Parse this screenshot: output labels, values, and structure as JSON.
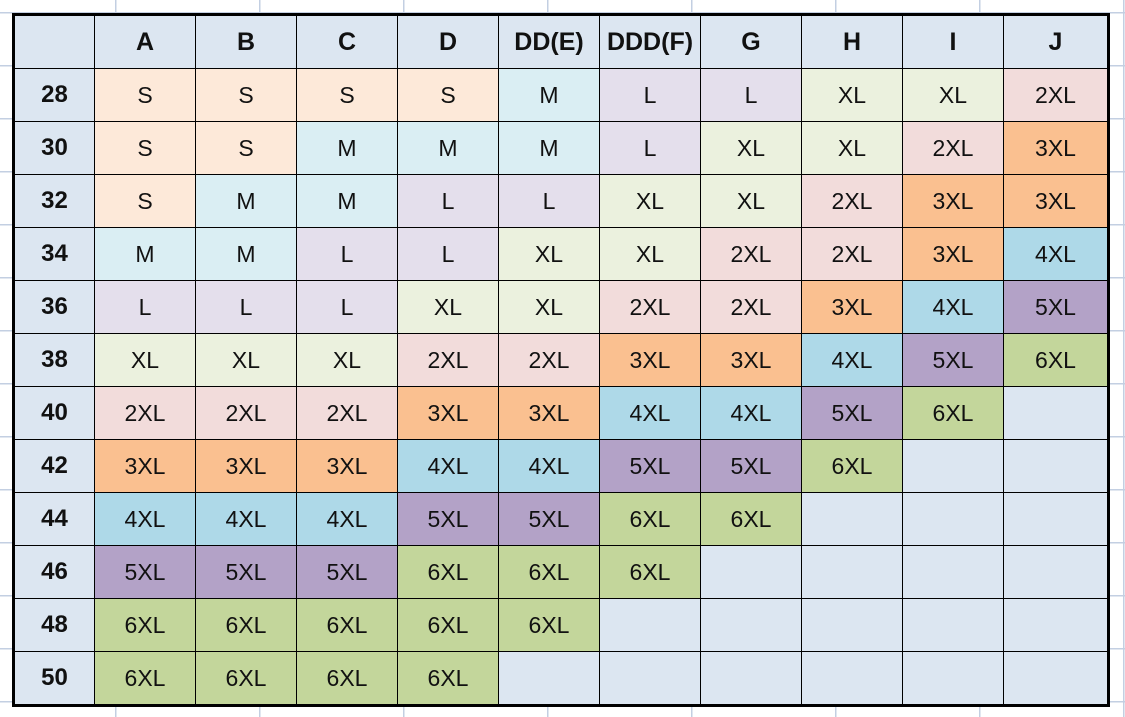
{
  "table": {
    "corner": "",
    "columns": [
      "A",
      "B",
      "C",
      "D",
      "DD(E)",
      "DDD(F)",
      "G",
      "H",
      "I",
      "J"
    ],
    "rows": [
      {
        "label": "28",
        "cells": [
          "S",
          "S",
          "S",
          "S",
          "M",
          "L",
          "L",
          "XL",
          "XL",
          "2XL"
        ]
      },
      {
        "label": "30",
        "cells": [
          "S",
          "S",
          "M",
          "M",
          "M",
          "L",
          "XL",
          "XL",
          "2XL",
          "3XL"
        ]
      },
      {
        "label": "32",
        "cells": [
          "S",
          "M",
          "M",
          "L",
          "L",
          "XL",
          "XL",
          "2XL",
          "3XL",
          "3XL"
        ]
      },
      {
        "label": "34",
        "cells": [
          "M",
          "M",
          "L",
          "L",
          "XL",
          "XL",
          "2XL",
          "2XL",
          "3XL",
          "4XL"
        ]
      },
      {
        "label": "36",
        "cells": [
          "L",
          "L",
          "L",
          "XL",
          "XL",
          "2XL",
          "2XL",
          "3XL",
          "4XL",
          "5XL"
        ]
      },
      {
        "label": "38",
        "cells": [
          "XL",
          "XL",
          "XL",
          "2XL",
          "2XL",
          "3XL",
          "3XL",
          "4XL",
          "5XL",
          "6XL"
        ]
      },
      {
        "label": "40",
        "cells": [
          "2XL",
          "2XL",
          "2XL",
          "3XL",
          "3XL",
          "4XL",
          "4XL",
          "5XL",
          "6XL",
          ""
        ]
      },
      {
        "label": "42",
        "cells": [
          "3XL",
          "3XL",
          "3XL",
          "4XL",
          "4XL",
          "5XL",
          "5XL",
          "6XL",
          "",
          ""
        ]
      },
      {
        "label": "44",
        "cells": [
          "4XL",
          "4XL",
          "4XL",
          "5XL",
          "5XL",
          "6XL",
          "6XL",
          "",
          "",
          ""
        ]
      },
      {
        "label": "46",
        "cells": [
          "5XL",
          "5XL",
          "5XL",
          "6XL",
          "6XL",
          "6XL",
          "",
          "",
          "",
          ""
        ]
      },
      {
        "label": "48",
        "cells": [
          "6XL",
          "6XL",
          "6XL",
          "6XL",
          "6XL",
          "",
          "",
          "",
          "",
          ""
        ]
      },
      {
        "label": "50",
        "cells": [
          "6XL",
          "6XL",
          "6XL",
          "6XL",
          "",
          "",
          "",
          "",
          "",
          ""
        ]
      }
    ]
  },
  "colors": {
    "header_bg": "#dce6f1",
    "empty_bg": "#dce6f1",
    "grid_line": "#c3cfe2",
    "border": "#000000",
    "text": "#111111",
    "size_fills": {
      "S": "#fde9d9",
      "M": "#daeef3",
      "L": "#e4dfec",
      "XL": "#ebf1de",
      "2XL": "#f2dcdb",
      "3XL": "#fac090",
      "4XL": "#aed9e8",
      "5XL": "#b3a2c7",
      "6XL": "#c3d69b"
    }
  }
}
